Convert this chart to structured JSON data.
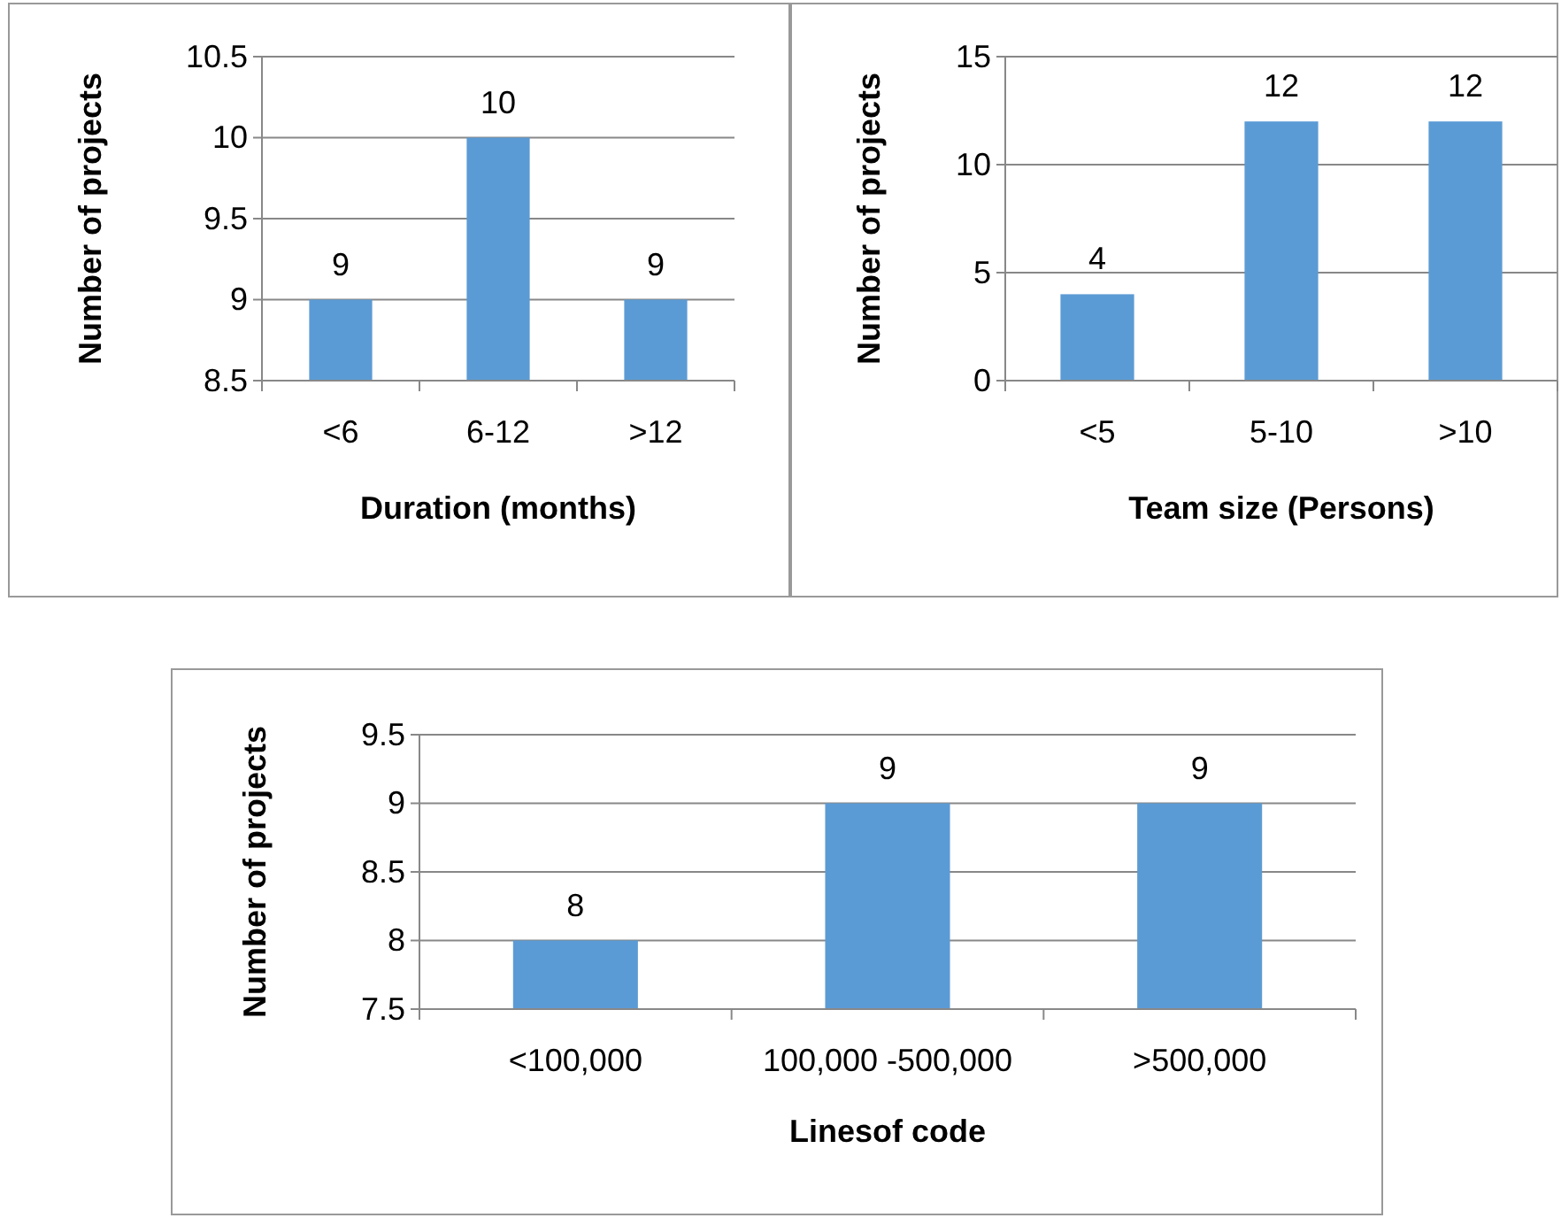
{
  "chart_data": [
    {
      "type": "bar",
      "xlabel": "Duration (months)",
      "ylabel": "Number of projects",
      "categories": [
        "<6",
        "6-12",
        ">12"
      ],
      "values": [
        9,
        10,
        9
      ],
      "color": "#5b9bd5",
      "ylim": [
        8.5,
        10.5
      ],
      "yticks": [
        8.5,
        9,
        9.5,
        10,
        10.5
      ],
      "grid": "y",
      "data_labels": true
    },
    {
      "type": "bar",
      "xlabel": "Team size (Persons)",
      "ylabel": "Number of projects",
      "categories": [
        "<5",
        "5-10",
        ">10"
      ],
      "values": [
        4,
        12,
        12
      ],
      "color": "#5b9bd5",
      "ylim": [
        0,
        15
      ],
      "yticks": [
        0,
        5,
        10,
        15
      ],
      "grid": "y",
      "data_labels": true
    },
    {
      "type": "bar",
      "xlabel": "Linesof code",
      "ylabel": "Number of projects",
      "categories": [
        "<100,000",
        "100,000 -500,000",
        ">500,000"
      ],
      "values": [
        8,
        9,
        9
      ],
      "color": "#5b9bd5",
      "ylim": [
        7.5,
        9.5
      ],
      "yticks": [
        7.5,
        8,
        8.5,
        9,
        9.5
      ],
      "grid": "y",
      "data_labels": true
    }
  ]
}
